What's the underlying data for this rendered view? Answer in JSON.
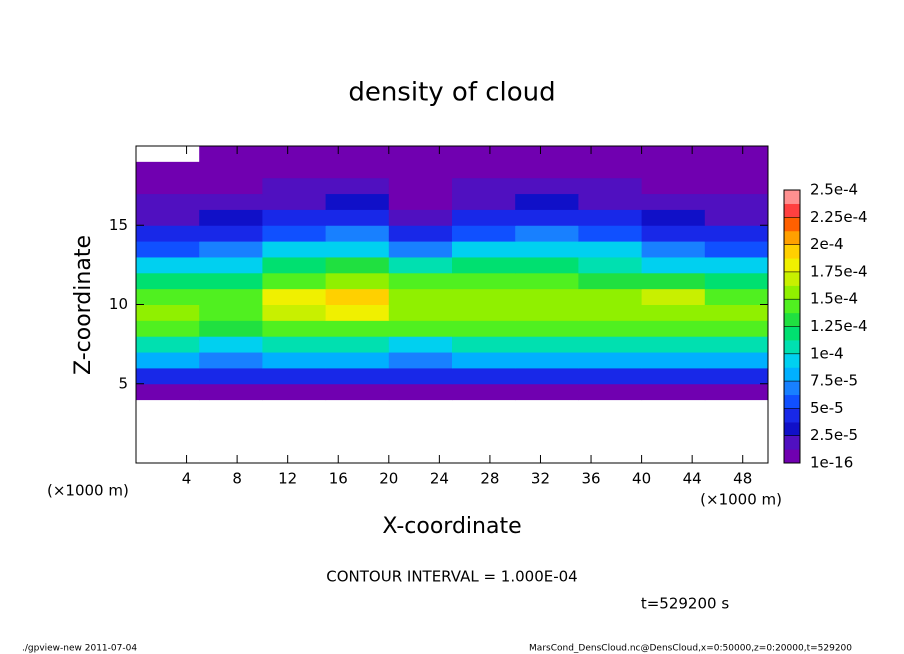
{
  "chart_data": {
    "type": "heatmap",
    "title": "density of cloud",
    "xlabel": "X-coordinate",
    "ylabel": "Z-coordinate",
    "xunit": "(×1000 m)",
    "yunit": "(×1000 m)",
    "annotation": "CONTOUR INTERVAL = 1.000E-04",
    "time_label": "t=529200 s",
    "footer_left": "./gpview-new  2011-07-04",
    "footer_right": "MarsCond_DensCloud.nc@DensCloud,x=0:50000,z=0:20000,t=529200",
    "xlim": [
      0,
      50
    ],
    "ylim": [
      0,
      20
    ],
    "xticks": [
      4,
      8,
      12,
      16,
      20,
      24,
      28,
      32,
      36,
      40,
      44,
      48
    ],
    "yticks": [
      5,
      10,
      15
    ],
    "x": [
      2.5,
      7.5,
      12.5,
      17.5,
      22.5,
      27.5,
      32.5,
      37.5,
      42.5,
      47.5
    ],
    "y": [
      0.5,
      1.5,
      2.5,
      3.5,
      4.5,
      5.5,
      6.5,
      7.5,
      8.5,
      9.5,
      10.5,
      11.5,
      12.5,
      13.5,
      14.5,
      15.5,
      16.5,
      17.5,
      18.5,
      19.5
    ],
    "z": [
      [
        null,
        null,
        null,
        null,
        null,
        null,
        null,
        null,
        null,
        null
      ],
      [
        null,
        null,
        null,
        null,
        null,
        null,
        null,
        null,
        null,
        null
      ],
      [
        null,
        null,
        null,
        null,
        null,
        null,
        null,
        null,
        null,
        null
      ],
      [
        null,
        null,
        null,
        null,
        null,
        null,
        null,
        null,
        null,
        null
      ],
      [
        5e-06,
        5e-06,
        5e-06,
        5e-06,
        5e-06,
        5e-06,
        5e-06,
        5e-06,
        5e-06,
        5e-06
      ],
      [
        5e-05,
        4e-05,
        5e-05,
        5e-05,
        4e-05,
        5e-05,
        5e-05,
        5e-05,
        5e-05,
        5e-05
      ],
      [
        8e-05,
        7e-05,
        8e-05,
        8e-05,
        7e-05,
        8e-05,
        8e-05,
        8e-05,
        8e-05,
        8e-05
      ],
      [
        0.00011,
        0.0001,
        0.00011,
        0.00011,
        0.0001,
        0.00011,
        0.00011,
        0.00011,
        0.00011,
        0.00011
      ],
      [
        0.00014,
        0.00013,
        0.00014,
        0.00015,
        0.00014,
        0.00014,
        0.00014,
        0.00014,
        0.00014,
        0.00014
      ],
      [
        0.00016,
        0.00015,
        0.00017,
        0.00018,
        0.00016,
        0.00016,
        0.00016,
        0.00016,
        0.00016,
        0.00016
      ],
      [
        0.00015,
        0.00015,
        0.00018,
        0.00019,
        0.00016,
        0.00016,
        0.00016,
        0.00016,
        0.00017,
        0.00015
      ],
      [
        0.00012,
        0.00012,
        0.00015,
        0.00016,
        0.00014,
        0.00014,
        0.00014,
        0.00013,
        0.00013,
        0.00012
      ],
      [
        9e-05,
        0.0001,
        0.00012,
        0.00013,
        0.00011,
        0.00012,
        0.00012,
        0.00011,
        0.0001,
        9e-05
      ],
      [
        6e-05,
        7e-05,
        9e-05,
        0.0001,
        7e-05,
        9e-05,
        0.0001,
        9e-05,
        7e-05,
        6e-05
      ],
      [
        4e-05,
        5e-05,
        6e-05,
        7e-05,
        4e-05,
        6e-05,
        7e-05,
        6e-05,
        5e-05,
        4e-05
      ],
      [
        2.5e-05,
        3e-05,
        4e-05,
        5e-05,
        1.5e-05,
        4e-05,
        5e-05,
        4e-05,
        3e-05,
        2.5e-05
      ],
      [
        1.5e-05,
        2e-05,
        2.5e-05,
        3e-05,
        8e-06,
        2.5e-05,
        3e-05,
        2.5e-05,
        2e-05,
        1.5e-05
      ],
      [
        8e-06,
        1e-05,
        1.5e-05,
        1.5e-05,
        3e-06,
        1.5e-05,
        1.5e-05,
        1.5e-05,
        1e-05,
        8e-06
      ],
      [
        4e-06,
        5e-06,
        8e-06,
        8e-06,
        2e-06,
        8e-06,
        8e-06,
        8e-06,
        5e-06,
        4e-06
      ],
      [
        null,
        2e-06,
        4e-06,
        4e-06,
        2e-06,
        4e-06,
        4e-06,
        4e-06,
        3e-06,
        3e-06
      ]
    ],
    "clim": [
      1e-16,
      0.00025
    ],
    "cticks": [
      {
        "value": 1e-16,
        "label": "1e-16"
      },
      {
        "value": 2.5e-05,
        "label": "2.5e-5"
      },
      {
        "value": 5e-05,
        "label": "5e-5"
      },
      {
        "value": 7.5e-05,
        "label": "7.5e-5"
      },
      {
        "value": 0.0001,
        "label": "1e-4"
      },
      {
        "value": 0.000125,
        "label": "1.25e-4"
      },
      {
        "value": 0.00015,
        "label": "1.5e-4"
      },
      {
        "value": 0.000175,
        "label": "1.75e-4"
      },
      {
        "value": 0.0002,
        "label": "2e-4"
      },
      {
        "value": 0.000225,
        "label": "2.25e-4"
      },
      {
        "value": 0.00025,
        "label": "2.5e-4"
      }
    ],
    "colors": [
      "#7000b0",
      "#5010c0",
      "#1010c8",
      "#1828e8",
      "#1050ff",
      "#1880ff",
      "#00b0ff",
      "#00d0f0",
      "#00e0b0",
      "#00e070",
      "#20e040",
      "#50f020",
      "#90f000",
      "#c8f000",
      "#f0f000",
      "#ffd000",
      "#ffa000",
      "#ff6000",
      "#ff4040",
      "#ff9090"
    ]
  }
}
